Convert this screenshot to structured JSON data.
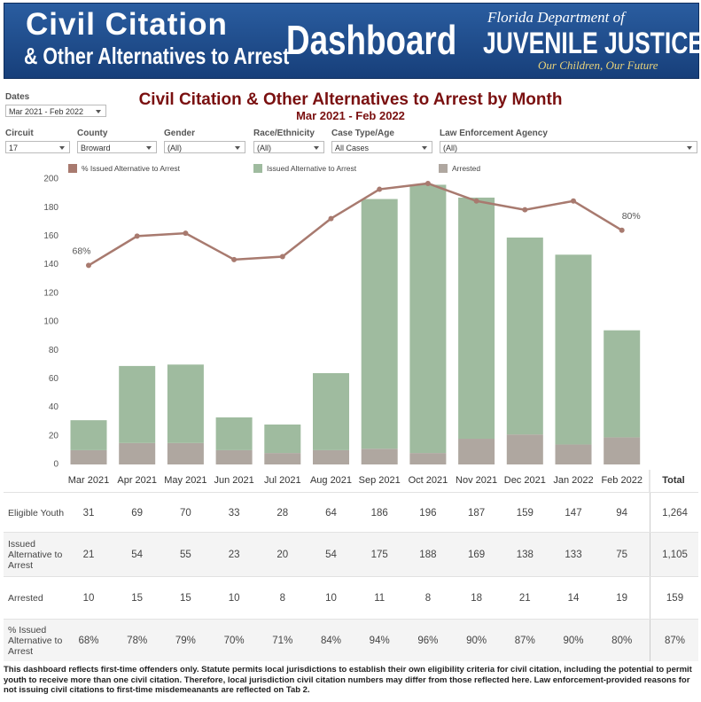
{
  "header": {
    "line1": "Civil Citation",
    "line2": "& Other Alternatives to Arrest",
    "dashboard": "Dashboard",
    "agency_top": "Florida Department of",
    "agency": "JUVENILE JUSTICE",
    "motto": "Our Children, Our Future"
  },
  "dates": {
    "label": "Dates",
    "value": "Mar 2021 - Feb 2022"
  },
  "filters": [
    {
      "label": "Circuit",
      "value": "17"
    },
    {
      "label": "County",
      "value": "Broward"
    },
    {
      "label": "Gender",
      "value": "(All)"
    },
    {
      "label": "Race/Ethnicity",
      "value": "(All)"
    },
    {
      "label": "Case Type/Age",
      "value": "All Cases"
    },
    {
      "label": "Law Enforcement Agency",
      "value": "(All)"
    }
  ],
  "chart_data": {
    "type": "bar",
    "stacked": true,
    "title": "Civil Citation & Other Alternatives to Arrest by Month",
    "subtitle": "Mar 2021 - Feb 2022",
    "categories": [
      "Mar 2021",
      "Apr 2021",
      "May 2021",
      "Jun 2021",
      "Jul 2021",
      "Aug 2021",
      "Sep 2021",
      "Oct 2021",
      "Nov 2021",
      "Dec 2021",
      "Jan 2022",
      "Feb 2022"
    ],
    "series": [
      {
        "name": "% Issued Alternative to Arrest",
        "type": "line",
        "axis": "y2",
        "color": "#a87a6f",
        "values": [
          68,
          78,
          79,
          70,
          71,
          84,
          94,
          96,
          90,
          87,
          90,
          80
        ],
        "value_labels": [
          "68%",
          null,
          null,
          null,
          null,
          null,
          null,
          null,
          null,
          null,
          null,
          "80%"
        ]
      },
      {
        "name": "Issued Alternative to Arrest",
        "type": "bar",
        "color": "#9fbb9f",
        "values": [
          21,
          54,
          55,
          23,
          20,
          54,
          175,
          188,
          169,
          138,
          133,
          75
        ]
      },
      {
        "name": "Arrested",
        "type": "bar",
        "color": "#afa7a0",
        "values": [
          10,
          15,
          15,
          10,
          8,
          10,
          11,
          8,
          18,
          21,
          14,
          19
        ]
      }
    ],
    "ylim": [
      0,
      200
    ],
    "yticks": [
      0,
      20,
      40,
      60,
      80,
      100,
      120,
      140,
      160,
      180,
      200
    ],
    "y2lim": [
      0,
      97.5
    ],
    "grid": false
  },
  "table": {
    "total_header": "Total",
    "rows": [
      [
        "Eligible Youth",
        "31",
        "69",
        "70",
        "33",
        "28",
        "64",
        "186",
        "196",
        "187",
        "159",
        "147",
        "94",
        "1,264"
      ],
      [
        "Issued Alternative to Arrest",
        "21",
        "54",
        "55",
        "23",
        "20",
        "54",
        "175",
        "188",
        "169",
        "138",
        "133",
        "75",
        "1,105"
      ],
      [
        "Arrested",
        "10",
        "15",
        "15",
        "10",
        "8",
        "10",
        "11",
        "8",
        "18",
        "21",
        "14",
        "19",
        "159"
      ],
      [
        "% Issued Alternative to Arrest",
        "68%",
        "78%",
        "79%",
        "70%",
        "71%",
        "84%",
        "94%",
        "96%",
        "90%",
        "87%",
        "90%",
        "80%",
        "87%"
      ]
    ]
  },
  "footnote": "This dashboard reflects first-time offenders only.  Statute permits local jurisdictions to establish their own eligibility criteria for civil citation, including the potential to permit youth to receive more than one civil citation.  Therefore, local jurisdiction civil citation numbers may differ from those reflected here. Law enforcement-provided reasons for not issuing civil citations to first-time misdemeanants are reflected on Tab 2."
}
